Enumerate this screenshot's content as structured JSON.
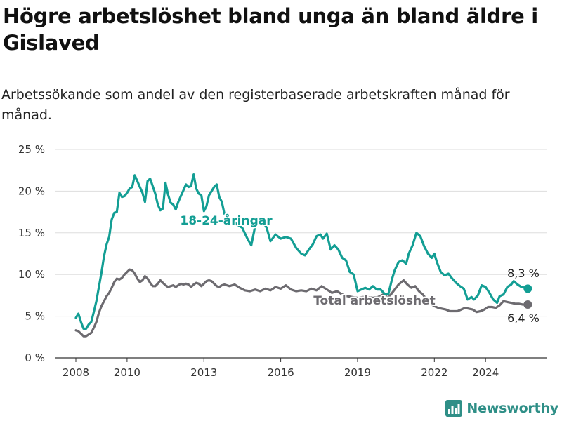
{
  "chart_data": {
    "type": "line",
    "title": "Högre arbetslöshet bland unga än bland äldre i Gislaved",
    "subtitle": "Arbetssökande som andel av den registerbaserade arbetskraften månad för månad.",
    "ylim": [
      0,
      25
    ],
    "xlim": [
      2007.5,
      2025.75
    ],
    "y_ticks": [
      0,
      5,
      10,
      15,
      20,
      25
    ],
    "y_tick_labels": [
      "0 %",
      "5 %",
      "10 %",
      "15 %",
      "20 %",
      "25 %"
    ],
    "x_ticks": [
      2008,
      2010,
      2013,
      2016,
      2019,
      2022,
      2024
    ],
    "x_tick_labels": [
      "2008",
      "2010",
      "2013",
      "2016",
      "2019",
      "2022",
      "2024"
    ],
    "grid": "horizontal",
    "series": [
      {
        "name": "18-24-åringar",
        "color": "#139e94",
        "end_label": "8,3 %",
        "points": [
          [
            2008.0,
            4.8
          ],
          [
            2008.1,
            5.3
          ],
          [
            2008.2,
            4.3
          ],
          [
            2008.3,
            3.5
          ],
          [
            2008.4,
            3.5
          ],
          [
            2008.5,
            4.0
          ],
          [
            2008.6,
            4.3
          ],
          [
            2008.7,
            5.5
          ],
          [
            2008.8,
            6.8
          ],
          [
            2008.9,
            8.5
          ],
          [
            2009.0,
            10.2
          ],
          [
            2009.1,
            12.2
          ],
          [
            2009.2,
            13.6
          ],
          [
            2009.3,
            14.5
          ],
          [
            2009.4,
            16.6
          ],
          [
            2009.5,
            17.4
          ],
          [
            2009.6,
            17.5
          ],
          [
            2009.7,
            19.8
          ],
          [
            2009.8,
            19.3
          ],
          [
            2009.9,
            19.4
          ],
          [
            2010.0,
            19.8
          ],
          [
            2010.1,
            20.3
          ],
          [
            2010.2,
            20.5
          ],
          [
            2010.3,
            21.9
          ],
          [
            2010.4,
            21.2
          ],
          [
            2010.5,
            20.5
          ],
          [
            2010.6,
            19.8
          ],
          [
            2010.7,
            18.7
          ],
          [
            2010.8,
            21.2
          ],
          [
            2010.9,
            21.5
          ],
          [
            2011.0,
            20.6
          ],
          [
            2011.1,
            19.7
          ],
          [
            2011.2,
            18.4
          ],
          [
            2011.3,
            17.7
          ],
          [
            2011.4,
            17.9
          ],
          [
            2011.5,
            21.0
          ],
          [
            2011.6,
            19.6
          ],
          [
            2011.7,
            18.6
          ],
          [
            2011.8,
            18.4
          ],
          [
            2011.9,
            17.8
          ],
          [
            2012.0,
            18.7
          ],
          [
            2012.1,
            19.4
          ],
          [
            2012.2,
            20.1
          ],
          [
            2012.3,
            20.8
          ],
          [
            2012.4,
            20.5
          ],
          [
            2012.5,
            20.6
          ],
          [
            2012.6,
            22.0
          ],
          [
            2012.7,
            20.3
          ],
          [
            2012.8,
            19.7
          ],
          [
            2012.9,
            19.5
          ],
          [
            2013.0,
            17.6
          ],
          [
            2013.1,
            18.2
          ],
          [
            2013.2,
            19.5
          ],
          [
            2013.3,
            20.0
          ],
          [
            2013.4,
            20.5
          ],
          [
            2013.5,
            20.8
          ],
          [
            2013.6,
            19.3
          ],
          [
            2013.7,
            18.7
          ],
          [
            2013.8,
            17.3
          ],
          [
            2014.0,
            16.7
          ],
          [
            2014.3,
            16.0
          ],
          [
            2014.5,
            15.6
          ],
          [
            2014.7,
            14.3
          ],
          [
            2014.85,
            13.5
          ],
          [
            2015.0,
            15.8
          ],
          [
            2015.3,
            16.4
          ],
          [
            2015.45,
            15.6
          ],
          [
            2015.6,
            14.0
          ],
          [
            2015.8,
            14.8
          ],
          [
            2016.0,
            14.3
          ],
          [
            2016.2,
            14.5
          ],
          [
            2016.4,
            14.3
          ],
          [
            2016.6,
            13.2
          ],
          [
            2016.8,
            12.5
          ],
          [
            2016.95,
            12.3
          ],
          [
            2017.1,
            13.0
          ],
          [
            2017.25,
            13.6
          ],
          [
            2017.4,
            14.6
          ],
          [
            2017.55,
            14.8
          ],
          [
            2017.65,
            14.3
          ],
          [
            2017.8,
            14.9
          ],
          [
            2017.95,
            13.0
          ],
          [
            2018.1,
            13.5
          ],
          [
            2018.25,
            13.0
          ],
          [
            2018.4,
            12.0
          ],
          [
            2018.55,
            11.7
          ],
          [
            2018.7,
            10.3
          ],
          [
            2018.85,
            10.0
          ],
          [
            2019.0,
            8.0
          ],
          [
            2019.15,
            8.2
          ],
          [
            2019.3,
            8.4
          ],
          [
            2019.45,
            8.2
          ],
          [
            2019.6,
            8.6
          ],
          [
            2019.75,
            8.2
          ],
          [
            2019.9,
            8.2
          ],
          [
            2020.05,
            7.7
          ],
          [
            2020.2,
            7.6
          ],
          [
            2020.35,
            9.5
          ],
          [
            2020.45,
            10.5
          ],
          [
            2020.6,
            11.5
          ],
          [
            2020.75,
            11.7
          ],
          [
            2020.9,
            11.3
          ],
          [
            2021.0,
            12.5
          ],
          [
            2021.15,
            13.5
          ],
          [
            2021.3,
            15.0
          ],
          [
            2021.45,
            14.6
          ],
          [
            2021.6,
            13.4
          ],
          [
            2021.75,
            12.5
          ],
          [
            2021.9,
            12.0
          ],
          [
            2022.0,
            12.5
          ],
          [
            2022.1,
            11.5
          ],
          [
            2022.25,
            10.3
          ],
          [
            2022.4,
            9.9
          ],
          [
            2022.55,
            10.1
          ],
          [
            2022.7,
            9.5
          ],
          [
            2022.85,
            9.0
          ],
          [
            2023.0,
            8.6
          ],
          [
            2023.15,
            8.3
          ],
          [
            2023.3,
            7.0
          ],
          [
            2023.45,
            7.3
          ],
          [
            2023.55,
            7.0
          ],
          [
            2023.7,
            7.5
          ],
          [
            2023.85,
            8.7
          ],
          [
            2024.0,
            8.5
          ],
          [
            2024.15,
            7.8
          ],
          [
            2024.3,
            7.0
          ],
          [
            2024.45,
            6.6
          ],
          [
            2024.55,
            7.4
          ],
          [
            2024.7,
            7.6
          ],
          [
            2024.85,
            8.5
          ],
          [
            2025.0,
            8.8
          ],
          [
            2025.1,
            9.2
          ],
          [
            2025.25,
            8.8
          ],
          [
            2025.4,
            8.5
          ],
          [
            2025.55,
            8.4
          ],
          [
            2025.65,
            8.3
          ]
        ]
      },
      {
        "name": "Total arbetslöshet",
        "color": "#6d6b70",
        "end_label": "6,4 %",
        "points": [
          [
            2008.0,
            3.3
          ],
          [
            2008.1,
            3.2
          ],
          [
            2008.2,
            2.9
          ],
          [
            2008.3,
            2.6
          ],
          [
            2008.4,
            2.6
          ],
          [
            2008.5,
            2.8
          ],
          [
            2008.6,
            3.0
          ],
          [
            2008.7,
            3.6
          ],
          [
            2008.8,
            4.3
          ],
          [
            2008.9,
            5.4
          ],
          [
            2009.0,
            6.2
          ],
          [
            2009.1,
            6.8
          ],
          [
            2009.2,
            7.4
          ],
          [
            2009.3,
            7.8
          ],
          [
            2009.4,
            8.4
          ],
          [
            2009.5,
            9.1
          ],
          [
            2009.6,
            9.5
          ],
          [
            2009.7,
            9.4
          ],
          [
            2009.8,
            9.6
          ],
          [
            2009.9,
            10.0
          ],
          [
            2010.0,
            10.3
          ],
          [
            2010.1,
            10.6
          ],
          [
            2010.2,
            10.5
          ],
          [
            2010.3,
            10.1
          ],
          [
            2010.4,
            9.5
          ],
          [
            2010.5,
            9.1
          ],
          [
            2010.6,
            9.3
          ],
          [
            2010.7,
            9.8
          ],
          [
            2010.8,
            9.5
          ],
          [
            2010.9,
            9.0
          ],
          [
            2011.0,
            8.6
          ],
          [
            2011.1,
            8.6
          ],
          [
            2011.2,
            8.9
          ],
          [
            2011.3,
            9.3
          ],
          [
            2011.4,
            9.0
          ],
          [
            2011.5,
            8.7
          ],
          [
            2011.6,
            8.5
          ],
          [
            2011.7,
            8.6
          ],
          [
            2011.8,
            8.7
          ],
          [
            2011.9,
            8.5
          ],
          [
            2012.0,
            8.7
          ],
          [
            2012.1,
            8.9
          ],
          [
            2012.2,
            8.8
          ],
          [
            2012.3,
            8.9
          ],
          [
            2012.4,
            8.8
          ],
          [
            2012.5,
            8.5
          ],
          [
            2012.6,
            8.8
          ],
          [
            2012.7,
            9.0
          ],
          [
            2012.8,
            8.9
          ],
          [
            2012.9,
            8.6
          ],
          [
            2013.0,
            8.9
          ],
          [
            2013.1,
            9.2
          ],
          [
            2013.2,
            9.3
          ],
          [
            2013.3,
            9.2
          ],
          [
            2013.4,
            8.9
          ],
          [
            2013.5,
            8.6
          ],
          [
            2013.6,
            8.5
          ],
          [
            2013.7,
            8.7
          ],
          [
            2013.8,
            8.8
          ],
          [
            2014.0,
            8.6
          ],
          [
            2014.2,
            8.8
          ],
          [
            2014.4,
            8.4
          ],
          [
            2014.6,
            8.1
          ],
          [
            2014.8,
            8.0
          ],
          [
            2015.0,
            8.2
          ],
          [
            2015.2,
            8.0
          ],
          [
            2015.4,
            8.3
          ],
          [
            2015.6,
            8.1
          ],
          [
            2015.8,
            8.5
          ],
          [
            2016.0,
            8.3
          ],
          [
            2016.2,
            8.7
          ],
          [
            2016.4,
            8.2
          ],
          [
            2016.6,
            8.0
          ],
          [
            2016.8,
            8.1
          ],
          [
            2017.0,
            8.0
          ],
          [
            2017.2,
            8.3
          ],
          [
            2017.4,
            8.1
          ],
          [
            2017.6,
            8.6
          ],
          [
            2017.8,
            8.2
          ],
          [
            2018.0,
            7.8
          ],
          [
            2018.2,
            8.0
          ],
          [
            2018.4,
            7.6
          ],
          [
            2018.6,
            7.4
          ],
          [
            2018.8,
            7.3
          ],
          [
            2019.0,
            7.2
          ],
          [
            2019.2,
            7.3
          ],
          [
            2019.4,
            7.3
          ],
          [
            2019.6,
            7.2
          ],
          [
            2019.8,
            7.3
          ],
          [
            2020.0,
            7.6
          ],
          [
            2020.2,
            7.2
          ],
          [
            2020.4,
            8.0
          ],
          [
            2020.6,
            8.8
          ],
          [
            2020.8,
            9.3
          ],
          [
            2020.95,
            8.8
          ],
          [
            2021.1,
            8.4
          ],
          [
            2021.25,
            8.6
          ],
          [
            2021.4,
            8.0
          ],
          [
            2021.55,
            7.6
          ],
          [
            2021.7,
            7.0
          ],
          [
            2021.85,
            6.5
          ],
          [
            2022.0,
            6.2
          ],
          [
            2022.15,
            6.0
          ],
          [
            2022.3,
            5.9
          ],
          [
            2022.45,
            5.8
          ],
          [
            2022.6,
            5.6
          ],
          [
            2022.75,
            5.6
          ],
          [
            2022.9,
            5.6
          ],
          [
            2023.05,
            5.8
          ],
          [
            2023.2,
            6.0
          ],
          [
            2023.35,
            5.9
          ],
          [
            2023.5,
            5.8
          ],
          [
            2023.65,
            5.5
          ],
          [
            2023.8,
            5.6
          ],
          [
            2023.95,
            5.8
          ],
          [
            2024.1,
            6.1
          ],
          [
            2024.25,
            6.1
          ],
          [
            2024.4,
            6.0
          ],
          [
            2024.55,
            6.3
          ],
          [
            2024.7,
            6.8
          ],
          [
            2024.85,
            6.7
          ],
          [
            2025.0,
            6.6
          ],
          [
            2025.15,
            6.5
          ],
          [
            2025.3,
            6.5
          ],
          [
            2025.45,
            6.4
          ],
          [
            2025.65,
            6.4
          ]
        ]
      }
    ]
  },
  "brand": {
    "name": "Newsworthy",
    "icon": "bar-chart-icon",
    "color": "#2f8f87"
  }
}
